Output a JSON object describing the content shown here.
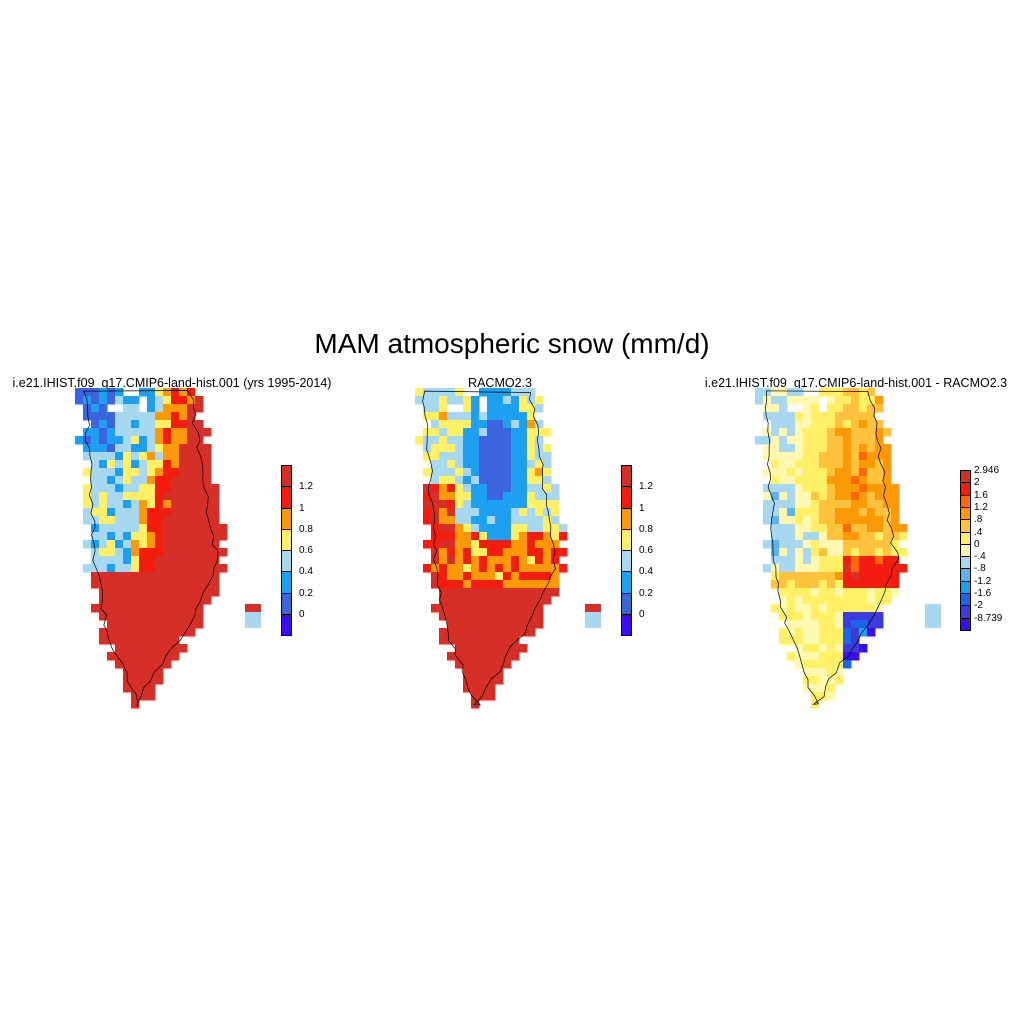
{
  "figure": {
    "title": "MAM atmospheric snow (mm/d)"
  },
  "panels": [
    {
      "title": "i.e21.IHIST.f09_g17.CMIP6-land-hist.001 (yrs 1995-2014)",
      "colorbar": {
        "labels": [
          "1.2",
          "1",
          "0.8",
          "0.6",
          "0.4",
          "0.2",
          "0"
        ],
        "colors": [
          "#d62f27",
          "#f21d0e",
          "#fb9a06",
          "#fff065",
          "#a8d8f0",
          "#1ea0f0",
          "#3c64dc",
          "#3b0ef0"
        ]
      },
      "field": "model"
    },
    {
      "title": "RACMO2.3",
      "colorbar": {
        "labels": [
          "1.2",
          "1",
          "0.8",
          "0.6",
          "0.4",
          "0.2",
          "0"
        ],
        "colors": [
          "#d62f27",
          "#f21d0e",
          "#fb9a06",
          "#fff065",
          "#a8d8f0",
          "#1ea0f0",
          "#3c64dc",
          "#3b0ef0"
        ]
      },
      "field": "obs"
    },
    {
      "title": "i.e21.IHIST.f09_g17.CMIP6-land-hist.001 - RACMO2.3",
      "colorbar": {
        "labels": [
          "2.946",
          "2",
          "1.6",
          "1.2",
          ".8",
          ".4",
          "0",
          "-.4",
          "-.8",
          "-1.2",
          "-1.6",
          "-2",
          "-8.739"
        ],
        "colors": [
          "#d62f27",
          "#f21d0e",
          "#fb6a06",
          "#fb9a06",
          "#ffc23c",
          "#fff065",
          "#fff8b0",
          "#a8d8f0",
          "#5ab4f0",
          "#1ea0f0",
          "#1e64e6",
          "#3c3cdc",
          "#3b0ef0"
        ]
      },
      "field": "diff"
    }
  ]
}
